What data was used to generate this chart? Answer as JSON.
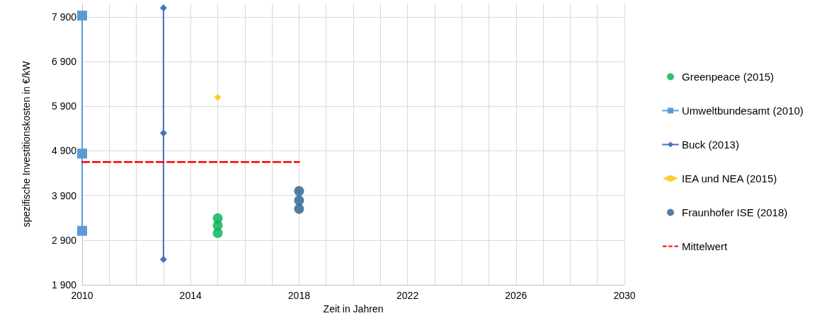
{
  "chart_data": {
    "type": "line",
    "xlabel": "Zeit in Jahren",
    "ylabel": "spezifische Investitionskosten in €/kW",
    "xlim": [
      2010,
      2030
    ],
    "xticks": [
      2010,
      {
        "value": 2011,
        "label": null
      },
      {
        "value": 2012,
        "label": null
      },
      {
        "value": 2013,
        "label": null
      },
      2014,
      {
        "value": 2015,
        "label": null
      },
      {
        "value": 2016,
        "label": null
      },
      {
        "value": 2017,
        "label": null
      },
      2018,
      {
        "value": 2019,
        "label": null
      },
      {
        "value": 2020,
        "label": null
      },
      {
        "value": 2021,
        "label": null
      },
      2022,
      {
        "value": 2023,
        "label": null
      },
      {
        "value": 2024,
        "label": null
      },
      {
        "value": 2025,
        "label": null
      },
      2026,
      {
        "value": 2027,
        "label": null
      },
      {
        "value": 2028,
        "label": null
      },
      {
        "value": 2029,
        "label": null
      },
      2030
    ],
    "ylim": [
      1900,
      8200
    ],
    "yticks": [
      {
        "value": 1900,
        "label": "1 900"
      },
      {
        "value": 2900,
        "label": "2 900"
      },
      {
        "value": 3900,
        "label": "3 900"
      },
      {
        "value": 4900,
        "label": "4 900"
      },
      {
        "value": 5900,
        "label": "5 900"
      },
      {
        "value": 6900,
        "label": "6 900"
      },
      {
        "value": 7900,
        "label": "7 900"
      }
    ],
    "grid": true,
    "legend": "right",
    "series": [
      {
        "name": "Greenpeace (2015)",
        "type": "scatter",
        "color": "#00b050",
        "marker": "circle",
        "x": [
          2015,
          2015,
          2015
        ],
        "values": [
          3390,
          3230,
          3060
        ]
      },
      {
        "name": "Umweltbundesamt (2010)",
        "color": "#5b9bd5",
        "marker": "square",
        "x": [
          2010,
          2010,
          2010
        ],
        "values": [
          7930,
          4840,
          3110
        ]
      },
      {
        "name": "Buck (2013)",
        "color": "#4472c4",
        "marker": "diamond",
        "x": [
          2013,
          2013,
          2013
        ],
        "values": [
          8100,
          5300,
          2470
        ]
      },
      {
        "name": "IEA und NEA (2015)",
        "type": "scatter",
        "color": "#ffc000",
        "marker": "diamond",
        "x": [
          2015
        ],
        "values": [
          6100
        ]
      },
      {
        "name": "Fraunhofer ISE (2018)",
        "type": "scatter",
        "color": "#255e91",
        "marker": "circle",
        "x": [
          2018,
          2018,
          2018
        ],
        "values": [
          4000,
          3790,
          3600
        ]
      },
      {
        "name": "Mittelwert",
        "color": "#ff0000",
        "marker": "none",
        "line_style": "dashed",
        "x": [
          2010,
          2018
        ],
        "values": [
          4650,
          4650
        ]
      }
    ]
  }
}
